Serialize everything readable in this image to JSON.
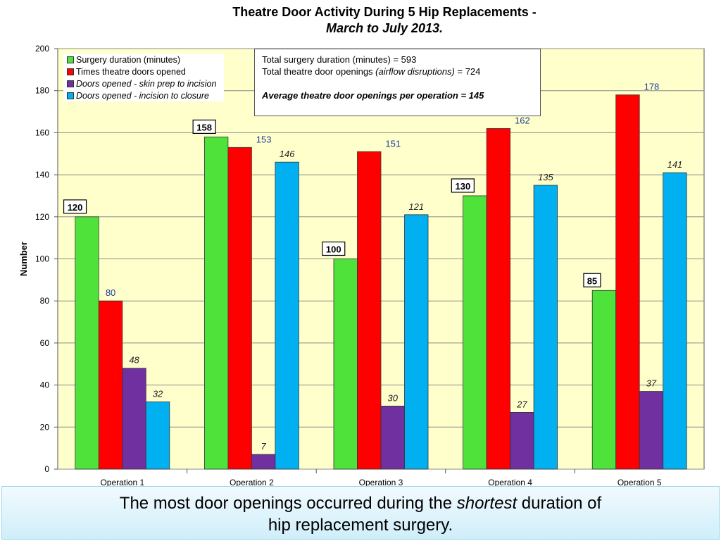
{
  "header": {
    "title_line1": "Theatre Door Activity During 5 Hip Replacements -",
    "title_line2": "March to July 2013."
  },
  "summary_box": {
    "line1": "Total surgery duration (minutes) = 593",
    "line2_prefix": "Total theatre door openings ",
    "line2_italic": "(airflow disruptions)",
    "line2_suffix": " = 724",
    "line3": "Average theatre door openings per operation = 145"
  },
  "footer": {
    "text_before": "The most door openings occurred during the ",
    "text_italic": "shortest",
    "text_after": " duration of hip replacement surgery."
  },
  "chart_data": {
    "type": "bar",
    "title": "Theatre Door Activity During 5 Hip Replacements - March to July 2013.",
    "xlabel": "",
    "ylabel": "Number",
    "ylim": [
      0,
      200
    ],
    "yticks": [
      0,
      20,
      40,
      60,
      80,
      100,
      120,
      140,
      160,
      180,
      200
    ],
    "grid": true,
    "legend_position": "top-left",
    "categories": [
      "Operation 1",
      "Operation 2",
      "Operation 3",
      "Operation 4",
      "Operation 5"
    ],
    "series": [
      {
        "name": "Surgery duration (minutes)",
        "values": [
          120,
          158,
          100,
          130,
          85
        ],
        "color": "#4ee23a",
        "label_style": "boxed",
        "italic": false
      },
      {
        "name": "Times theatre doors opened",
        "values": [
          80,
          153,
          151,
          162,
          178
        ],
        "color": "#ff0000",
        "label_style": "blue",
        "italic": false
      },
      {
        "name": "Doors opened - skin prep to incision",
        "values": [
          48,
          7,
          30,
          27,
          37
        ],
        "color": "#7030a0",
        "label_style": "italic",
        "italic": true
      },
      {
        "name": "Doors opened - incision to closure",
        "values": [
          32,
          146,
          121,
          135,
          141
        ],
        "color": "#00b0f0",
        "label_style": "italic",
        "italic": true
      }
    ]
  }
}
